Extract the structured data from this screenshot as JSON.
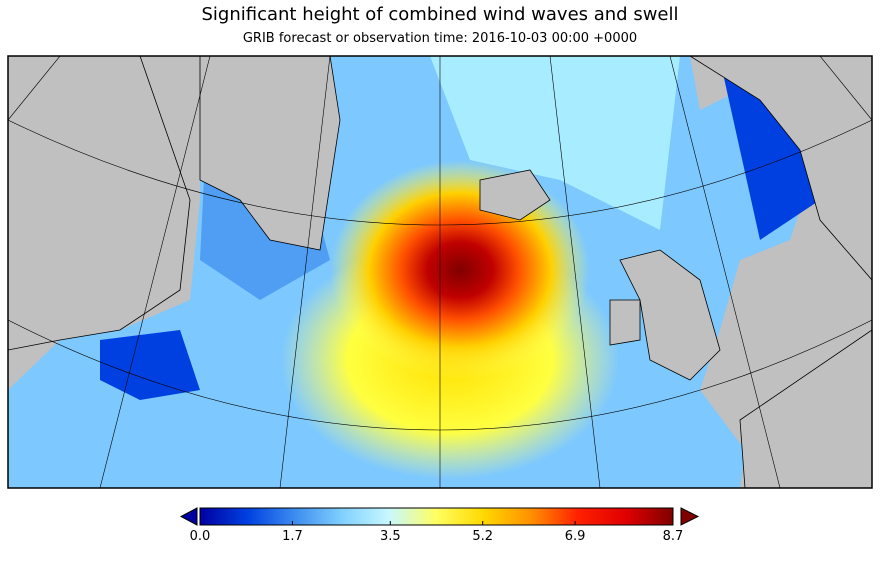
{
  "title": "Significant height of combined wind waves and swell",
  "subtitle": "GRIB forecast or observation time: 2016-10-03 00:00 +0000",
  "colorbar": {
    "range": [
      0,
      8.7
    ],
    "ticks": [
      {
        "value": 0,
        "label": "0.0"
      },
      1.7,
      3.5,
      5.2,
      6.9,
      8.7
    ],
    "colors": [
      "#0000a0",
      "#0040e0",
      "#3c8cf0",
      "#80d0ff",
      "#c8f8ff",
      "#ffff60",
      "#ffd800",
      "#ff9000",
      "#ff2000",
      "#e00000",
      "#800000"
    ]
  }
}
